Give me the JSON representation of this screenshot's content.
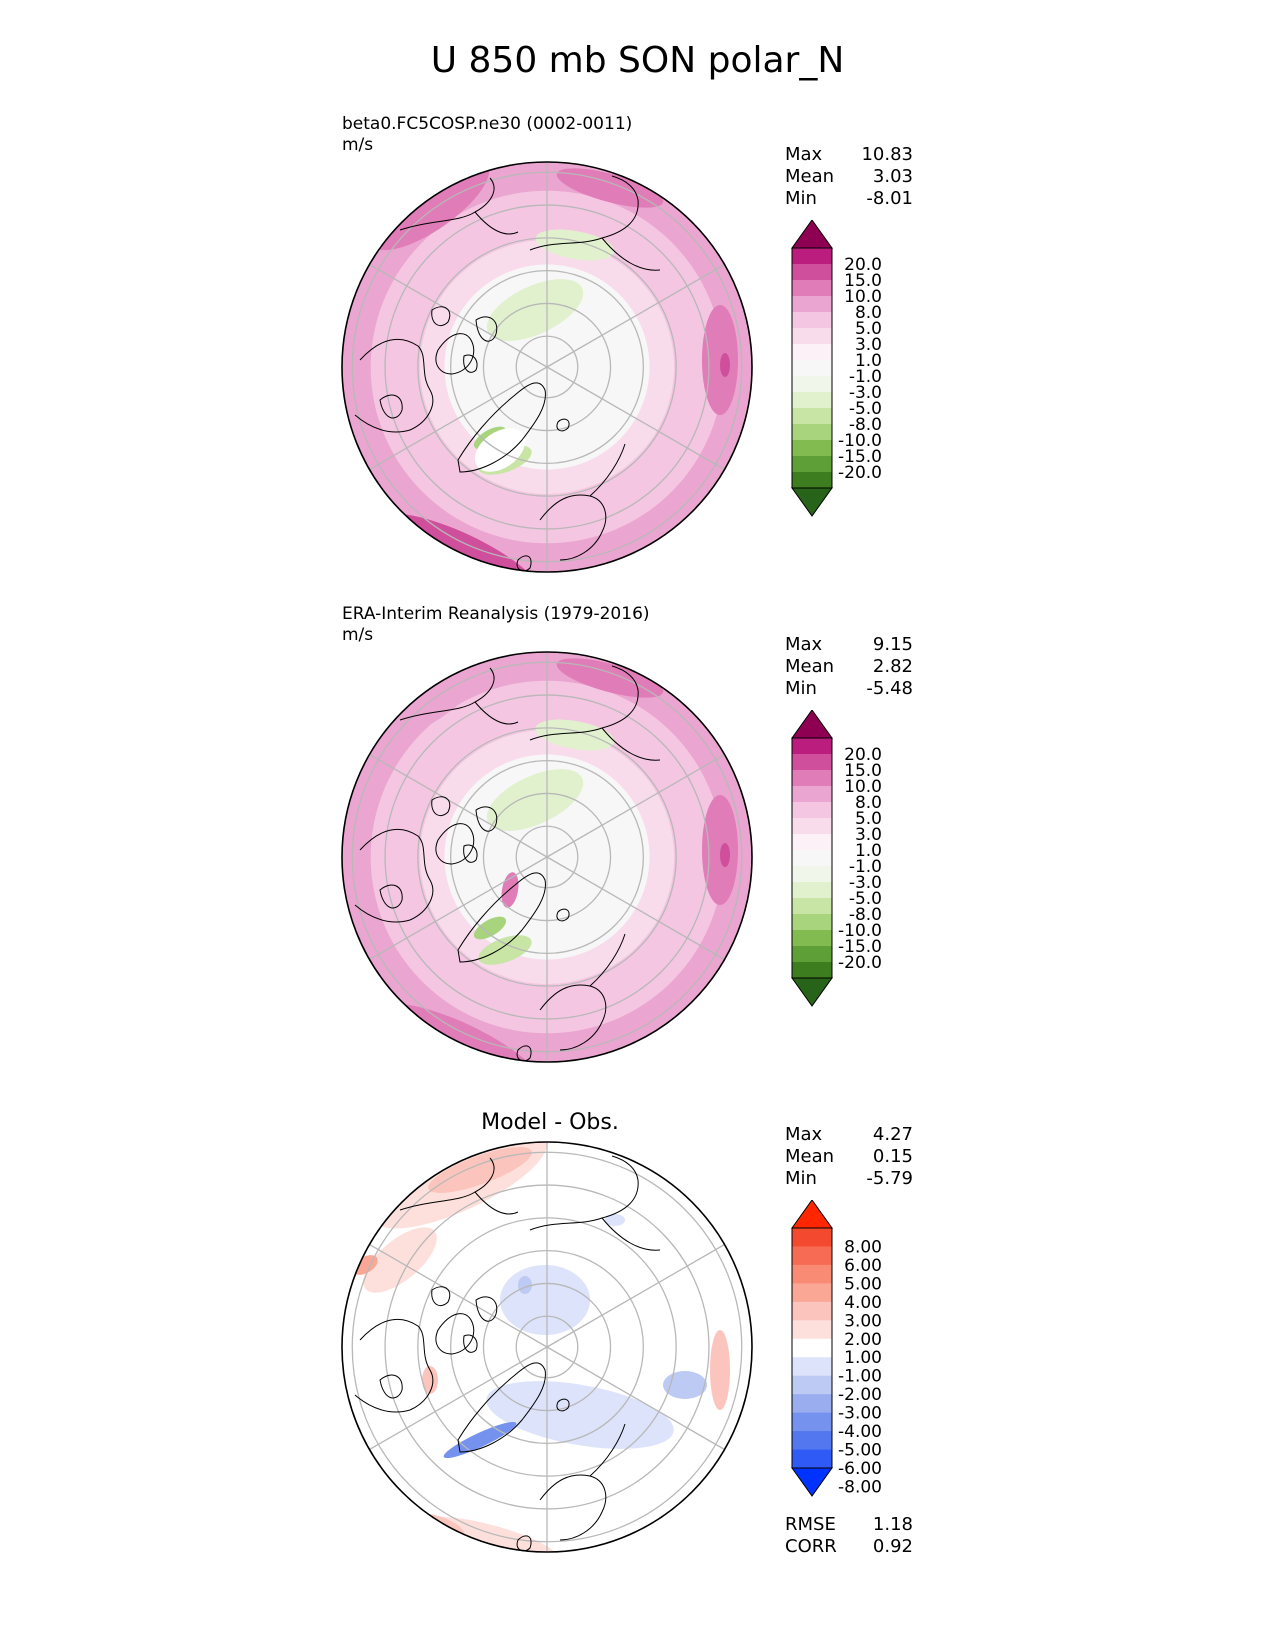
{
  "figure": {
    "title": "U 850 mb SON polar_N"
  },
  "colors": {
    "coast": "#000000",
    "grid": "#b8b8b8",
    "field_cmap": [
      "#276419",
      "#3d7d20",
      "#5f9f37",
      "#82bb50",
      "#a8d47d",
      "#c8e5a5",
      "#e1f1cd",
      "#f1f6ea",
      "#f7f7f7",
      "#fcf1f6",
      "#f9dcec",
      "#f4c6e2",
      "#eaa6d0",
      "#e07cb7",
      "#cf4f9c",
      "#bb1d7e",
      "#8e0152"
    ],
    "diff_cmap": [
      "#0033ff",
      "#2f5af6",
      "#5277ef",
      "#7593ee",
      "#99adef",
      "#bccaf4",
      "#dde3fa",
      "#ffffff",
      "#fde0dc",
      "#fbc4bc",
      "#faa796",
      "#f98a74",
      "#f76b54",
      "#f34a2f",
      "#ff2600"
    ]
  },
  "chart_data": [
    {
      "type": "polar-contour-map",
      "title": "beta0.FC5COSP.ne30 (0002-0011)",
      "units": "m/s",
      "colorbar_levels": [
        "20.0",
        "15.0",
        "10.0",
        "8.0",
        "5.0",
        "3.0",
        "1.0",
        "-1.0",
        "-3.0",
        "-5.0",
        "-8.0",
        "-10.0",
        "-15.0",
        "-20.0"
      ],
      "stats": {
        "Max": "10.83",
        "Mean": "3.03",
        "Min": "-8.01"
      }
    },
    {
      "type": "polar-contour-map",
      "title": "ERA-Interim Reanalysis (1979-2016)",
      "units": "m/s",
      "colorbar_levels": [
        "20.0",
        "15.0",
        "10.0",
        "8.0",
        "5.0",
        "3.0",
        "1.0",
        "-1.0",
        "-3.0",
        "-5.0",
        "-8.0",
        "-10.0",
        "-15.0",
        "-20.0"
      ],
      "stats": {
        "Max": "9.15",
        "Mean": "2.82",
        "Min": "-5.48"
      }
    },
    {
      "type": "polar-contour-map",
      "title": "Model - Obs.",
      "colorbar_levels": [
        "8.00",
        "6.00",
        "5.00",
        "4.00",
        "3.00",
        "2.00",
        "1.00",
        "-1.00",
        "-2.00",
        "-3.00",
        "-4.00",
        "-5.00",
        "-6.00",
        "-8.00"
      ],
      "stats": {
        "Max": "4.27",
        "Mean": "0.15",
        "Min": "-5.79"
      },
      "metrics": {
        "RMSE": "1.18",
        "CORR": "0.92"
      }
    }
  ]
}
